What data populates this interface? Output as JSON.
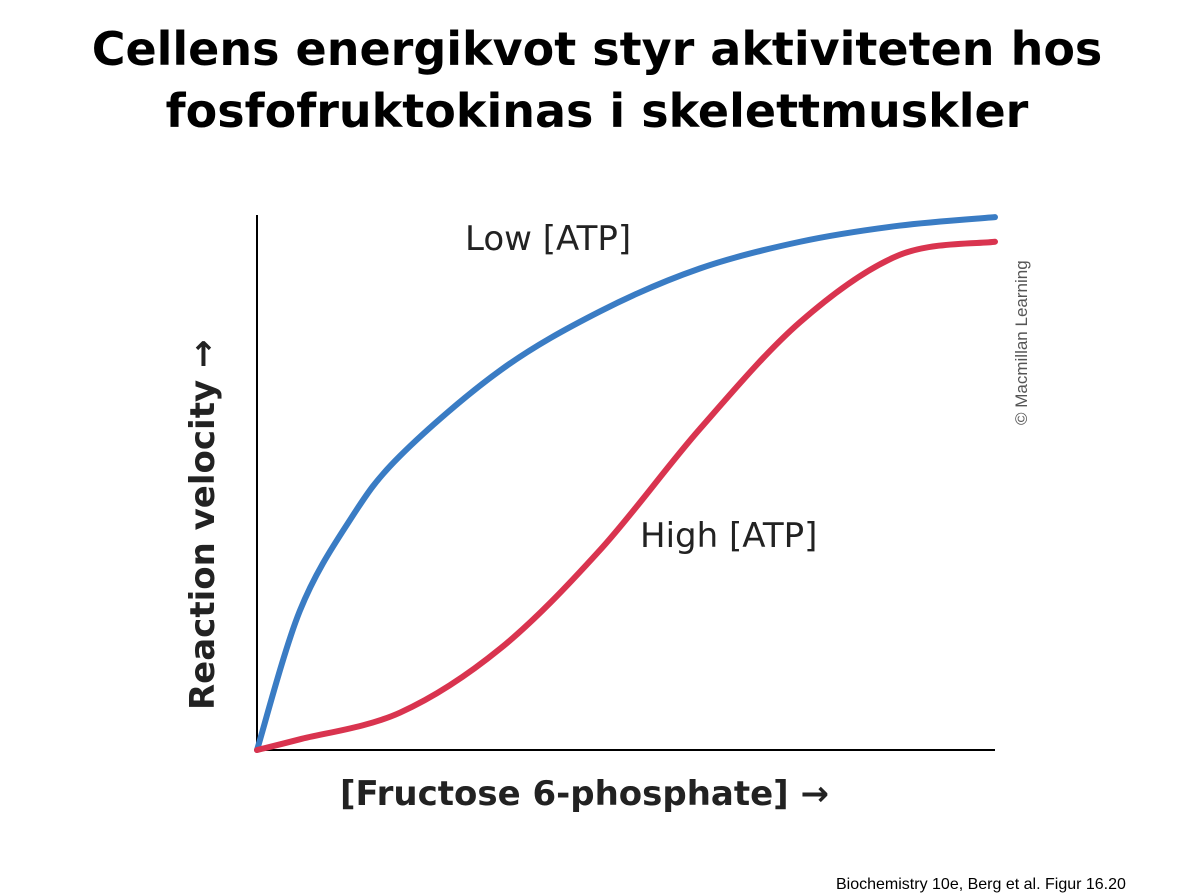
{
  "title_line1": "Cellens energikvot styr aktiviteten hos",
  "title_line2": "fosfofruktokinas i skelettmuskler",
  "footer": "Biochemistry 10e, Berg et al. Figur 16.20",
  "chart_data": {
    "type": "line",
    "xlabel": "[Fructose 6-phosphate] →",
    "ylabel": "Reaction velocity →",
    "copyright": "© Macmillan Learning",
    "xlim": [
      0,
      100
    ],
    "ylim": [
      0,
      100
    ],
    "grid": false,
    "series": [
      {
        "name": "Low [ATP]",
        "color": "#3a7cc4",
        "x": [
          0,
          5.8,
          12.6,
          19.4,
          33,
          46.5,
          60,
          73.6,
          87,
          100
        ],
        "y": [
          0,
          26,
          43,
          55,
          71,
          82,
          90,
          95,
          98,
          99.6
        ]
      },
      {
        "name": "High [ATP]",
        "color": "#d9344f",
        "x": [
          0,
          5.8,
          19.4,
          33,
          46.5,
          60,
          73.6,
          87,
          100
        ],
        "y": [
          0,
          2,
          7,
          19,
          37.4,
          60,
          80,
          92.5,
          95
        ]
      }
    ]
  }
}
